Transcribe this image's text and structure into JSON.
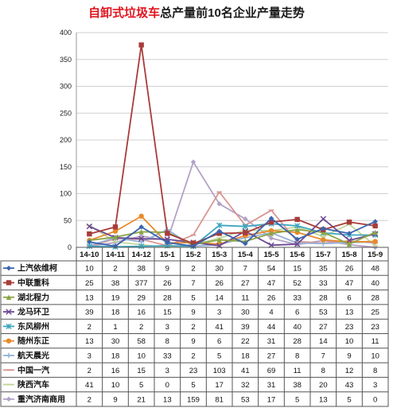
{
  "chart_data": {
    "type": "line",
    "title_highlight": "自卸式垃圾车",
    "title_rest": "总产量前10名企业产量走势",
    "xlabel": "",
    "ylabel": "",
    "ylim": [
      0,
      400
    ],
    "yticks": [
      0,
      50,
      100,
      150,
      200,
      250,
      300,
      350,
      400
    ],
    "grid": true,
    "legend": "table-below",
    "categories": [
      "14-10",
      "14-11",
      "14-12",
      "15-1",
      "15-2",
      "15-3",
      "15-4",
      "15-5",
      "15-6",
      "15-7",
      "15-8",
      "15-9"
    ],
    "series": [
      {
        "name": "上汽依维柯",
        "color": "#3b64ad",
        "marker": "diamond",
        "values": [
          10,
          2,
          38,
          9,
          2,
          30,
          7,
          54,
          15,
          35,
          26,
          48
        ]
      },
      {
        "name": "中联重科",
        "color": "#a83c3a",
        "marker": "square",
        "values": [
          25,
          38,
          377,
          26,
          7,
          26,
          27,
          47,
          52,
          33,
          47,
          40
        ]
      },
      {
        "name": "湖北程力",
        "color": "#8aa545",
        "marker": "triangle",
        "values": [
          13,
          19,
          29,
          28,
          5,
          14,
          11,
          26,
          33,
          28,
          6,
          28
        ]
      },
      {
        "name": "龙马环卫",
        "color": "#6c4a93",
        "marker": "x",
        "values": [
          39,
          18,
          16,
          15,
          9,
          3,
          30,
          4,
          6,
          53,
          13,
          25
        ]
      },
      {
        "name": "东风柳州",
        "color": "#3ea6bf",
        "marker": "star",
        "values": [
          2,
          1,
          2,
          3,
          2,
          41,
          39,
          44,
          40,
          27,
          23,
          23
        ]
      },
      {
        "name": "随州东正",
        "color": "#e88a2a",
        "marker": "circle",
        "values": [
          13,
          30,
          58,
          8,
          9,
          6,
          22,
          31,
          28,
          14,
          10,
          11
        ]
      },
      {
        "name": "航天晨光",
        "color": "#95b3d7",
        "marker": "plus",
        "values": [
          3,
          18,
          10,
          33,
          2,
          5,
          18,
          27,
          8,
          7,
          9,
          10
        ]
      },
      {
        "name": "中国一汽",
        "color": "#d99694",
        "marker": "dash",
        "values": [
          2,
          16,
          15,
          3,
          23,
          103,
          41,
          69,
          11,
          8,
          12,
          8
        ]
      },
      {
        "name": "陕西汽车",
        "color": "#c3d69b",
        "marker": "dash",
        "values": [
          41,
          10,
          5,
          0,
          5,
          17,
          32,
          31,
          38,
          20,
          43,
          3
        ]
      },
      {
        "name": "重汽济南商用",
        "color": "#b3a2c7",
        "marker": "diamond",
        "values": [
          2,
          9,
          21,
          13,
          159,
          81,
          53,
          17,
          5,
          13,
          5,
          0
        ]
      }
    ]
  }
}
